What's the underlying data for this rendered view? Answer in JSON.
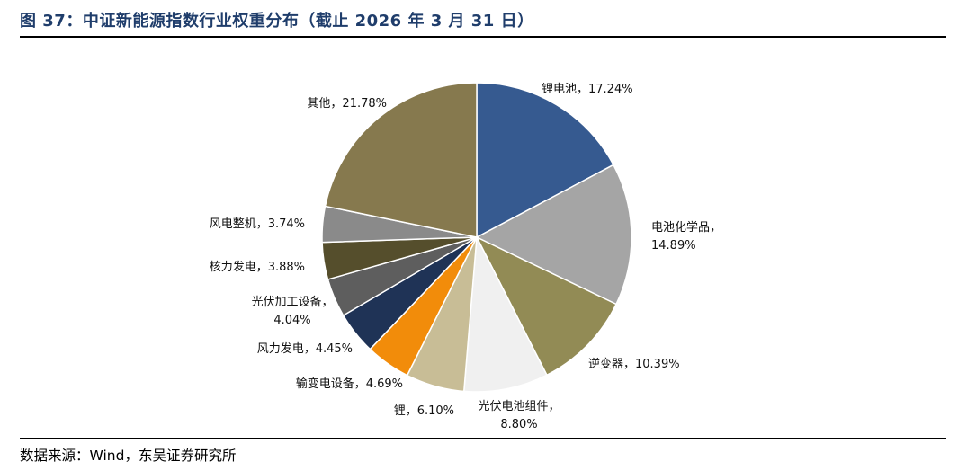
{
  "header": {
    "title": "图 37：中证新能源指数行业权重分布（截止 2026 年 3 月 31 日）"
  },
  "footer": {
    "source": "数据来源：Wind，东吴证券研究所"
  },
  "chart_data": {
    "type": "pie",
    "title": "",
    "slices": [
      {
        "label": "锂电池",
        "value": 17.24,
        "display": "17.24%",
        "color": "#365a90"
      },
      {
        "label": "电池化学品",
        "value": 14.89,
        "display": "14.89%",
        "color": "#a5a5a5"
      },
      {
        "label": "逆变器",
        "value": 10.39,
        "display": "10.39%",
        "color": "#928b55"
      },
      {
        "label": "光伏电池组件",
        "value": 8.8,
        "display": "8.80%",
        "color": "#f0f0f0"
      },
      {
        "label": "锂",
        "value": 6.1,
        "display": "6.10%",
        "color": "#c8bd96"
      },
      {
        "label": "输变电设备",
        "value": 4.69,
        "display": "4.69%",
        "color": "#f28c0a"
      },
      {
        "label": "风力发电",
        "value": 4.45,
        "display": "4.45%",
        "color": "#1f3356"
      },
      {
        "label": "光伏加工设备",
        "value": 4.04,
        "display": "4.04%",
        "color": "#5e5e5e"
      },
      {
        "label": "核力发电",
        "value": 3.88,
        "display": "3.88%",
        "color": "#554e2c"
      },
      {
        "label": "风电整机",
        "value": 3.74,
        "display": "3.74%",
        "color": "#8a8a8a"
      },
      {
        "label": "其他",
        "value": 21.78,
        "display": "21.78%",
        "color": "#86794e"
      }
    ],
    "start_angle_deg": 0,
    "direction": "clockwise",
    "legend": "none",
    "data_labels": "outside"
  }
}
